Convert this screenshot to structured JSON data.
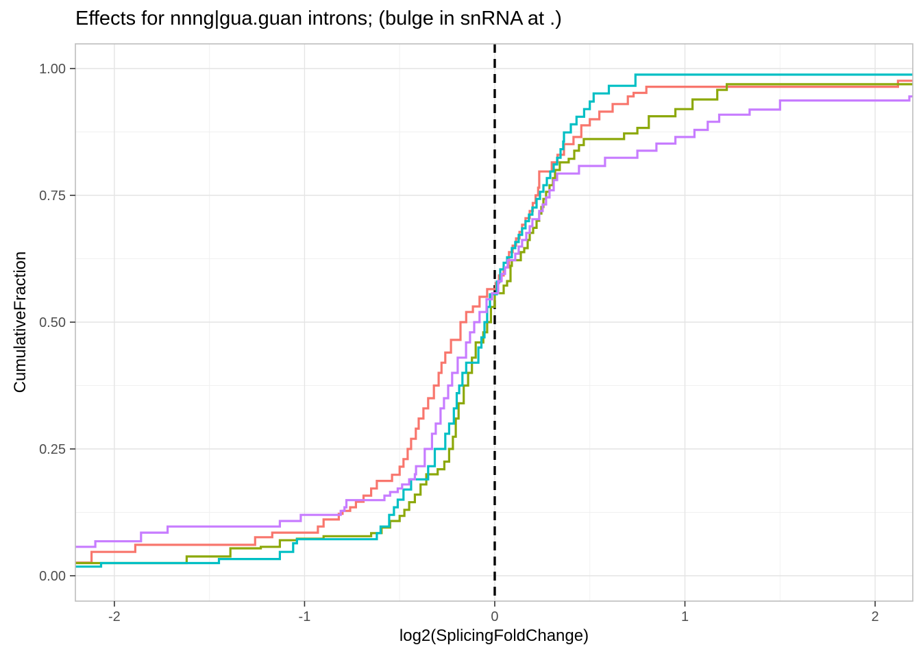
{
  "figure": {
    "background": "#ffffff"
  },
  "chart_data": {
    "type": "line",
    "subtype": "ecdf-step",
    "title": "Effects for nnng|gua.guan introns; (bulge in snRNA at .)",
    "xlabel": "log2(SplicingFoldChange)",
    "ylabel": "CumulativeFraction",
    "xlim": [
      -2.205,
      2.198
    ],
    "ylim": [
      -0.05,
      1.049
    ],
    "x_tick_values": [
      -2,
      -1,
      0,
      1,
      2
    ],
    "x_tick_labels": [
      "-2",
      "-1",
      "0",
      "1",
      "2"
    ],
    "y_tick_values": [
      0,
      0.25,
      0.5,
      0.75,
      1
    ],
    "y_tick_labels": [
      "0.00",
      "0.25",
      "0.50",
      "0.75",
      "1.00"
    ],
    "x_minor_gridlines": [
      -1.5,
      -0.5,
      0.5,
      1.5
    ],
    "y_minor_gridlines": [
      0.125,
      0.375,
      0.625,
      0.875
    ],
    "grid": "major+minor",
    "legend": "none",
    "vline": {
      "x": 0,
      "style": "dashed",
      "color": "#000000"
    },
    "panel": {
      "background": "#ffffff",
      "border_color": "#bdbdbd",
      "major_grid_color": "#e4e4e4",
      "minor_grid_color": "#f0f0f0",
      "tick_color": "#333333",
      "tick_label_color": "#4d4d4d"
    },
    "series": [
      {
        "name": "salmon",
        "color": "#F8766D",
        "points": [
          [
            -2.21,
            0.026
          ],
          [
            -2.12,
            0.047
          ],
          [
            -1.89,
            0.061
          ],
          [
            -1.26,
            0.076
          ],
          [
            -1.17,
            0.085
          ],
          [
            -0.93,
            0.097
          ],
          [
            -0.9,
            0.111
          ],
          [
            -0.82,
            0.122
          ],
          [
            -0.8,
            0.128
          ],
          [
            -0.76,
            0.135
          ],
          [
            -0.73,
            0.146
          ],
          [
            -0.69,
            0.158
          ],
          [
            -0.65,
            0.172
          ],
          [
            -0.62,
            0.187
          ],
          [
            -0.54,
            0.199
          ],
          [
            -0.5,
            0.215
          ],
          [
            -0.48,
            0.23
          ],
          [
            -0.458,
            0.25
          ],
          [
            -0.44,
            0.27
          ],
          [
            -0.415,
            0.29
          ],
          [
            -0.4,
            0.31
          ],
          [
            -0.375,
            0.33
          ],
          [
            -0.35,
            0.35
          ],
          [
            -0.32,
            0.375
          ],
          [
            -0.295,
            0.4
          ],
          [
            -0.28,
            0.42
          ],
          [
            -0.26,
            0.44
          ],
          [
            -0.23,
            0.465
          ],
          [
            -0.18,
            0.5
          ],
          [
            -0.15,
            0.52
          ],
          [
            -0.115,
            0.531
          ],
          [
            -0.08,
            0.55
          ],
          [
            -0.04,
            0.565
          ],
          [
            0.005,
            0.577
          ],
          [
            0.022,
            0.592
          ],
          [
            0.047,
            0.608
          ],
          [
            0.075,
            0.638
          ],
          [
            0.094,
            0.651
          ],
          [
            0.112,
            0.665
          ],
          [
            0.13,
            0.678
          ],
          [
            0.144,
            0.692
          ],
          [
            0.162,
            0.705
          ],
          [
            0.184,
            0.719
          ],
          [
            0.2,
            0.735
          ],
          [
            0.215,
            0.75
          ],
          [
            0.228,
            0.765
          ],
          [
            0.234,
            0.797
          ],
          [
            0.3,
            0.815
          ],
          [
            0.33,
            0.83
          ],
          [
            0.364,
            0.851
          ],
          [
            0.414,
            0.865
          ],
          [
            0.455,
            0.888
          ],
          [
            0.5,
            0.9
          ],
          [
            0.55,
            0.915
          ],
          [
            0.62,
            0.93
          ],
          [
            0.7,
            0.945
          ],
          [
            0.73,
            0.952
          ],
          [
            0.797,
            0.964
          ],
          [
            2.12,
            0.976
          ]
        ]
      },
      {
        "name": "olive",
        "color": "#8CA80A",
        "points": [
          [
            -2.21,
            0.025
          ],
          [
            -1.62,
            0.038
          ],
          [
            -1.39,
            0.054
          ],
          [
            -1.23,
            0.057
          ],
          [
            -1.13,
            0.07
          ],
          [
            -1.04,
            0.073
          ],
          [
            -0.9,
            0.078
          ],
          [
            -0.65,
            0.084
          ],
          [
            -0.595,
            0.095
          ],
          [
            -0.55,
            0.108
          ],
          [
            -0.5,
            0.118
          ],
          [
            -0.475,
            0.13
          ],
          [
            -0.45,
            0.145
          ],
          [
            -0.42,
            0.16
          ],
          [
            -0.39,
            0.18
          ],
          [
            -0.36,
            0.2
          ],
          [
            -0.3,
            0.21
          ],
          [
            -0.265,
            0.225
          ],
          [
            -0.24,
            0.25
          ],
          [
            -0.22,
            0.274
          ],
          [
            -0.205,
            0.31
          ],
          [
            -0.19,
            0.34
          ],
          [
            -0.163,
            0.375
          ],
          [
            -0.14,
            0.4
          ],
          [
            -0.12,
            0.43
          ],
          [
            -0.1,
            0.46
          ],
          [
            -0.06,
            0.48
          ],
          [
            -0.04,
            0.5
          ],
          [
            -0.02,
            0.53
          ],
          [
            0.0,
            0.557
          ],
          [
            0.047,
            0.572
          ],
          [
            0.065,
            0.581
          ],
          [
            0.083,
            0.611
          ],
          [
            0.09,
            0.622
          ],
          [
            0.137,
            0.638
          ],
          [
            0.155,
            0.646
          ],
          [
            0.173,
            0.662
          ],
          [
            0.184,
            0.676
          ],
          [
            0.202,
            0.686
          ],
          [
            0.22,
            0.7
          ],
          [
            0.234,
            0.714
          ],
          [
            0.245,
            0.727
          ],
          [
            0.256,
            0.743
          ],
          [
            0.27,
            0.757
          ],
          [
            0.288,
            0.77
          ],
          [
            0.306,
            0.784
          ],
          [
            0.317,
            0.8
          ],
          [
            0.342,
            0.815
          ],
          [
            0.389,
            0.822
          ],
          [
            0.418,
            0.838
          ],
          [
            0.443,
            0.849
          ],
          [
            0.468,
            0.861
          ],
          [
            0.68,
            0.872
          ],
          [
            0.75,
            0.883
          ],
          [
            0.81,
            0.906
          ],
          [
            0.95,
            0.92
          ],
          [
            1.04,
            0.939
          ],
          [
            1.17,
            0.958
          ],
          [
            1.22,
            0.969
          ]
        ]
      },
      {
        "name": "teal",
        "color": "#00BFC4",
        "points": [
          [
            -2.21,
            0.018
          ],
          [
            -2.07,
            0.025
          ],
          [
            -1.45,
            0.033
          ],
          [
            -1.13,
            0.047
          ],
          [
            -1.06,
            0.064
          ],
          [
            -1.04,
            0.072
          ],
          [
            -0.62,
            0.084
          ],
          [
            -0.6,
            0.097
          ],
          [
            -0.555,
            0.12
          ],
          [
            -0.53,
            0.135
          ],
          [
            -0.51,
            0.15
          ],
          [
            -0.48,
            0.17
          ],
          [
            -0.44,
            0.19
          ],
          [
            -0.35,
            0.216
          ],
          [
            -0.315,
            0.25
          ],
          [
            -0.26,
            0.28
          ],
          [
            -0.24,
            0.3
          ],
          [
            -0.215,
            0.33
          ],
          [
            -0.2,
            0.36
          ],
          [
            -0.187,
            0.375
          ],
          [
            -0.17,
            0.4
          ],
          [
            -0.15,
            0.42
          ],
          [
            -0.086,
            0.45
          ],
          [
            -0.07,
            0.47
          ],
          [
            -0.054,
            0.5
          ],
          [
            -0.04,
            0.53
          ],
          [
            -0.025,
            0.555
          ],
          [
            0.011,
            0.58
          ],
          [
            0.029,
            0.604
          ],
          [
            0.047,
            0.617
          ],
          [
            0.065,
            0.628
          ],
          [
            0.09,
            0.646
          ],
          [
            0.108,
            0.658
          ],
          [
            0.126,
            0.672
          ],
          [
            0.144,
            0.685
          ],
          [
            0.162,
            0.699
          ],
          [
            0.18,
            0.712
          ],
          [
            0.198,
            0.726
          ],
          [
            0.22,
            0.743
          ],
          [
            0.238,
            0.757
          ],
          [
            0.256,
            0.77
          ],
          [
            0.274,
            0.784
          ],
          [
            0.292,
            0.797
          ],
          [
            0.31,
            0.811
          ],
          [
            0.328,
            0.824
          ],
          [
            0.346,
            0.841
          ],
          [
            0.36,
            0.856
          ],
          [
            0.364,
            0.874
          ],
          [
            0.4,
            0.89
          ],
          [
            0.43,
            0.905
          ],
          [
            0.47,
            0.92
          ],
          [
            0.5,
            0.935
          ],
          [
            0.52,
            0.951
          ],
          [
            0.6,
            0.966
          ],
          [
            0.74,
            0.988
          ]
        ]
      },
      {
        "name": "violet",
        "color": "#C77CFF",
        "points": [
          [
            -2.21,
            0.057
          ],
          [
            -2.1,
            0.068
          ],
          [
            -1.86,
            0.085
          ],
          [
            -1.72,
            0.097
          ],
          [
            -1.13,
            0.108
          ],
          [
            -1.02,
            0.12
          ],
          [
            -0.81,
            0.128
          ],
          [
            -0.79,
            0.135
          ],
          [
            -0.78,
            0.149
          ],
          [
            -0.58,
            0.158
          ],
          [
            -0.55,
            0.165
          ],
          [
            -0.51,
            0.172
          ],
          [
            -0.487,
            0.18
          ],
          [
            -0.45,
            0.19
          ],
          [
            -0.42,
            0.2
          ],
          [
            -0.414,
            0.216
          ],
          [
            -0.368,
            0.25
          ],
          [
            -0.33,
            0.28
          ],
          [
            -0.31,
            0.3
          ],
          [
            -0.285,
            0.33
          ],
          [
            -0.267,
            0.35
          ],
          [
            -0.245,
            0.375
          ],
          [
            -0.224,
            0.4
          ],
          [
            -0.195,
            0.43
          ],
          [
            -0.151,
            0.46
          ],
          [
            -0.13,
            0.48
          ],
          [
            -0.108,
            0.5
          ],
          [
            -0.08,
            0.52
          ],
          [
            -0.043,
            0.545
          ],
          [
            -0.014,
            0.557
          ],
          [
            0.018,
            0.581
          ],
          [
            0.036,
            0.595
          ],
          [
            0.054,
            0.608
          ],
          [
            0.068,
            0.622
          ],
          [
            0.108,
            0.635
          ],
          [
            0.126,
            0.649
          ],
          [
            0.144,
            0.662
          ],
          [
            0.166,
            0.676
          ],
          [
            0.184,
            0.689
          ],
          [
            0.198,
            0.703
          ],
          [
            0.234,
            0.719
          ],
          [
            0.252,
            0.732
          ],
          [
            0.27,
            0.746
          ],
          [
            0.288,
            0.76
          ],
          [
            0.31,
            0.78
          ],
          [
            0.328,
            0.793
          ],
          [
            0.443,
            0.808
          ],
          [
            0.58,
            0.824
          ],
          [
            0.75,
            0.838
          ],
          [
            0.85,
            0.852
          ],
          [
            0.95,
            0.865
          ],
          [
            1.05,
            0.879
          ],
          [
            1.12,
            0.895
          ],
          [
            1.18,
            0.909
          ],
          [
            1.34,
            0.919
          ],
          [
            1.5,
            0.937
          ],
          [
            2.18,
            0.945
          ]
        ]
      }
    ]
  }
}
